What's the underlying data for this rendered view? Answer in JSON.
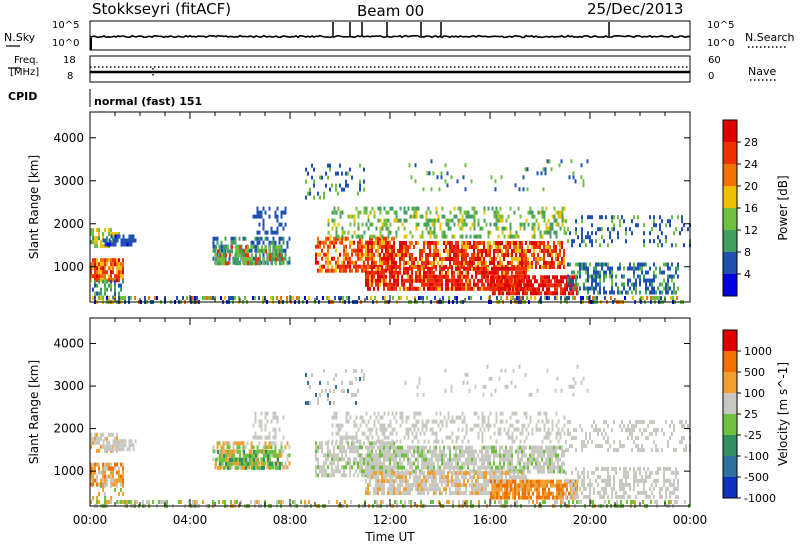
{
  "header": {
    "station": "Stokkseyri (fitACF)",
    "beam": "Beam 00",
    "date": "25/Dec/2013"
  },
  "noise_panel": {
    "left_label": "N.Sky",
    "left_top": "10^5",
    "left_bottom": "10^0",
    "right_top": "10^5",
    "right_bottom": "10^0",
    "right_label": "N.Search"
  },
  "freq_panel": {
    "left_label_top": "Freq.",
    "left_label_bottom": "[MHz]",
    "left_top": "18",
    "left_bottom": "8",
    "right_top": "60",
    "right_bottom": "0",
    "right_label": "Nave"
  },
  "cpid": {
    "label": "CPID",
    "value": "normal (fast) 151"
  },
  "chart_data": [
    {
      "type": "heatmap",
      "name": "power",
      "ylabel": "Slant Range [km]",
      "yticks": [
        1000,
        2000,
        3000,
        4000
      ],
      "ylim": [
        180,
        4600
      ],
      "colorbar_label": "Power [dB]",
      "colorbar_ticks": [
        "28",
        "24",
        "20",
        "16",
        "12",
        "8",
        "4"
      ],
      "colors": [
        "#0000e0",
        "#2050b0",
        "#40a060",
        "#70c040",
        "#f0c000",
        "#f07000",
        "#f03000",
        "#e00000"
      ]
    },
    {
      "type": "heatmap",
      "name": "velocity",
      "ylabel": "Slant Range [km]",
      "yticks": [
        1000,
        2000,
        3000,
        4000
      ],
      "ylim": [
        180,
        4600
      ],
      "colorbar_label": "Velocity [m s^-1]",
      "colorbar_ticks": [
        "1000",
        "500",
        "100",
        "25",
        "-25",
        "-100",
        "-500",
        "-1000"
      ],
      "colors": [
        "#1030c0",
        "#3070a0",
        "#309060",
        "#70c040",
        "#c8c8c0",
        "#f0a030",
        "#f07000",
        "#e00000"
      ]
    }
  ],
  "xaxis": {
    "label": "Time UT",
    "ticks": [
      "00:00",
      "04:00",
      "08:00",
      "12:00",
      "16:00",
      "20:00",
      "00:00"
    ],
    "range_hours": [
      0,
      24
    ]
  }
}
